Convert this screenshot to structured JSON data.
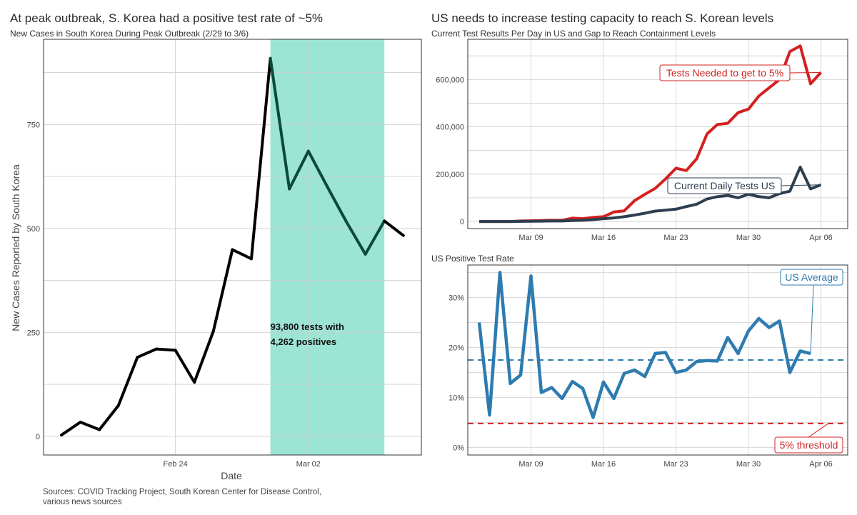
{
  "left": {
    "title": "At peak outbreak, S. Korea had a positive test rate of ~5%",
    "subtitle": "New Cases in South Korea During Peak Outbreak (2/29 to 3/6)",
    "source_lines": [
      "Sources: COVID Tracking Project, South Korean Center for Disease Control,",
      "various news sources"
    ]
  },
  "right": {
    "title": "US needs to increase testing capacity to reach S. Korean levels"
  },
  "chart_data": [
    {
      "type": "line",
      "subtitle": "New Cases in South Korea During Peak Outbreak (2/29 to 3/6)",
      "xlabel": "Date",
      "ylabel": "New Cases Reported by South Korea",
      "x": [
        "2020-02-18",
        "2020-02-19",
        "2020-02-20",
        "2020-02-21",
        "2020-02-22",
        "2020-02-23",
        "2020-02-24",
        "2020-02-25",
        "2020-02-26",
        "2020-02-27",
        "2020-02-28",
        "2020-02-29",
        "2020-03-01",
        "2020-03-02",
        "2020-03-03",
        "2020-03-04",
        "2020-03-05",
        "2020-03-06",
        "2020-03-07"
      ],
      "values": [
        3,
        34,
        16,
        74,
        190,
        210,
        207,
        130,
        253,
        449,
        427,
        909,
        595,
        686,
        600,
        516,
        438,
        518,
        483
      ],
      "xticks": [
        {
          "x": "2020-02-24",
          "label": "Feb 24"
        },
        {
          "x": "2020-03-02",
          "label": "Mar 02"
        }
      ],
      "yticks": [
        0,
        250,
        500,
        750
      ],
      "ylim": [
        -45,
        955
      ],
      "highlight": {
        "from": "2020-02-29",
        "to": "2020-03-06",
        "color": "#5fd3b8"
      },
      "line_color": "#000000",
      "highlight_line_color": "#0b4a3a",
      "annotation": [
        "93,800 tests with",
        "4,262 positives"
      ],
      "grid": true
    },
    {
      "type": "line",
      "subtitle": "Current Test Results Per Day in US and Gap to Reach Containment Levels",
      "x_start": "2020-03-04",
      "xticks": [
        {
          "x": "2020-03-09",
          "label": "Mar 09"
        },
        {
          "x": "2020-03-16",
          "label": "Mar 16"
        },
        {
          "x": "2020-03-23",
          "label": "Mar 23"
        },
        {
          "x": "2020-03-30",
          "label": "Mar 30"
        },
        {
          "x": "2020-04-06",
          "label": "Apr 06"
        }
      ],
      "yticks": [
        {
          "v": 0,
          "label": "0"
        },
        {
          "v": 200000,
          "label": "200,000"
        },
        {
          "v": 400000,
          "label": "400,000"
        },
        {
          "v": 600000,
          "label": "600,000"
        }
      ],
      "ylim": [
        -30000,
        770000
      ],
      "xlim": [
        "2020-03-02",
        "2020-04-07"
      ],
      "grid": true,
      "series": [
        {
          "name": "Tests Needed to get to 5%",
          "color": "#d42020",
          "values": [
            0,
            0,
            0,
            0,
            2000,
            3000,
            4000,
            5000,
            5000,
            14000,
            12000,
            17000,
            20000,
            40000,
            45000,
            88000,
            115000,
            140000,
            180000,
            225000,
            215000,
            265000,
            370000,
            410000,
            415000,
            460000,
            475000,
            530000,
            565000,
            600000,
            718000,
            742000,
            582000,
            630000
          ]
        },
        {
          "name": "Current Daily Tests US",
          "color": "#2d3e50",
          "values": [
            0,
            0,
            0,
            0,
            500,
            1000,
            1500,
            2000,
            2000,
            4000,
            5000,
            8000,
            12000,
            15000,
            20000,
            27000,
            35000,
            44000,
            48000,
            52000,
            63000,
            73000,
            95000,
            105000,
            110000,
            100000,
            115000,
            105000,
            100000,
            118000,
            128000,
            230000,
            138000,
            155000
          ]
        }
      ]
    },
    {
      "type": "line",
      "subtitle": "US Positive Test Rate",
      "x_start": "2020-03-04",
      "xticks": [
        {
          "x": "2020-03-09",
          "label": "Mar 09"
        },
        {
          "x": "2020-03-16",
          "label": "Mar 16"
        },
        {
          "x": "2020-03-23",
          "label": "Mar 23"
        },
        {
          "x": "2020-03-30",
          "label": "Mar 30"
        },
        {
          "x": "2020-04-06",
          "label": "Apr 06"
        }
      ],
      "yticks": [
        {
          "v": 0,
          "label": "0%"
        },
        {
          "v": 10,
          "label": "10%"
        },
        {
          "v": 20,
          "label": "20%"
        },
        {
          "v": 30,
          "label": "30%"
        }
      ],
      "ylim": [
        -1.5,
        36.5
      ],
      "xlim": [
        "2020-03-02",
        "2020-04-07"
      ],
      "grid": true,
      "series": [
        {
          "name": "",
          "color": "#2e7bb0",
          "values": [
            25,
            6.5,
            35,
            12.8,
            14.5,
            34.3,
            11,
            12,
            9.8,
            13.2,
            11.8,
            6,
            13.1,
            9.8,
            14.8,
            15.5,
            14.2,
            18.8,
            19,
            15,
            15.5,
            17.2,
            17.4,
            17.3,
            22,
            18.8,
            23.3,
            25.8,
            24,
            25.3,
            15,
            19.3,
            18.8
          ]
        }
      ],
      "reference_lines": [
        {
          "value": 17.5,
          "color": "#2e7bb0",
          "label": "US Average"
        },
        {
          "value": 4.8,
          "color": "#d42020",
          "label": "5% threshold"
        }
      ]
    }
  ]
}
